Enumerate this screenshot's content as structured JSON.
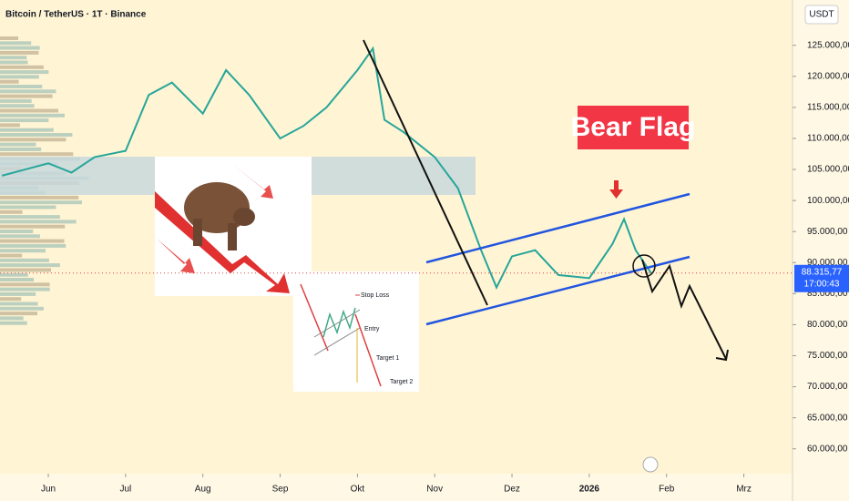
{
  "chart_data": {
    "type": "line",
    "title": "Bitcoin / TetherUS · 1T · Binance",
    "currency": "USDT",
    "xlim": [
      0.375,
      10.63
    ],
    "xticks": [
      {
        "value": 1,
        "label": "Jun"
      },
      {
        "value": 2,
        "label": "Jul"
      },
      {
        "value": 3,
        "label": "Aug"
      },
      {
        "value": 4,
        "label": "Sep"
      },
      {
        "value": 5,
        "label": "Okt"
      },
      {
        "value": 6,
        "label": "Nov"
      },
      {
        "value": 7,
        "label": "Dez"
      },
      {
        "value": 8,
        "label": "2026"
      },
      {
        "value": 9,
        "label": "Feb"
      },
      {
        "value": 10,
        "label": "Mrz"
      }
    ],
    "ylim": [
      56000,
      132300
    ],
    "yticks": [
      {
        "value": 125000,
        "label": "125.000,00"
      },
      {
        "value": 120000,
        "label": "120.000,00"
      },
      {
        "value": 115000,
        "label": "115.000,00"
      },
      {
        "value": 110000,
        "label": "110.000,00"
      },
      {
        "value": 105000,
        "label": "105.000,00"
      },
      {
        "value": 100000,
        "label": "100.000,00"
      },
      {
        "value": 95000,
        "label": "95.000,00"
      },
      {
        "value": 90000,
        "label": "90.000,00"
      },
      {
        "value": 85000,
        "label": "85.000,00"
      },
      {
        "value": 80000,
        "label": "80.000,00"
      },
      {
        "value": 75000,
        "label": "75.000,00"
      },
      {
        "value": 70000,
        "label": "70.000,00"
      },
      {
        "value": 65000,
        "label": "65.000,00"
      },
      {
        "value": 60000,
        "label": "60.000,00"
      }
    ],
    "x": [
      0.4,
      0.7,
      1.0,
      1.3,
      1.6,
      2.0,
      2.3,
      2.6,
      3.0,
      3.3,
      3.6,
      4.0,
      4.3,
      4.6,
      5.0,
      5.2,
      5.35,
      5.6,
      6.0,
      6.3,
      6.6,
      6.8,
      7.0,
      7.3,
      7.6,
      8.0,
      8.3,
      8.45,
      8.6,
      8.8
    ],
    "series": [
      {
        "name": "BTCUSDT",
        "color": "#26a69a",
        "values": [
          104000,
          105000,
          106000,
          104500,
          107000,
          108000,
          117000,
          119000,
          114000,
          121000,
          117000,
          110000,
          112000,
          115000,
          121000,
          124500,
          113000,
          111000,
          107000,
          102000,
          92000,
          86000,
          91000,
          92000,
          88000,
          87500,
          93000,
          97000,
          92000,
          88300
        ]
      }
    ],
    "last_price": {
      "value": 88315.77,
      "label": "88.315,77"
    },
    "countdown": "17:00:43",
    "annotations": {
      "pattern": "Bear Flag",
      "stop_loss": "Stop Loss",
      "entry": "Entry",
      "target_1": "Target 1",
      "target_2": "Target 2"
    }
  }
}
